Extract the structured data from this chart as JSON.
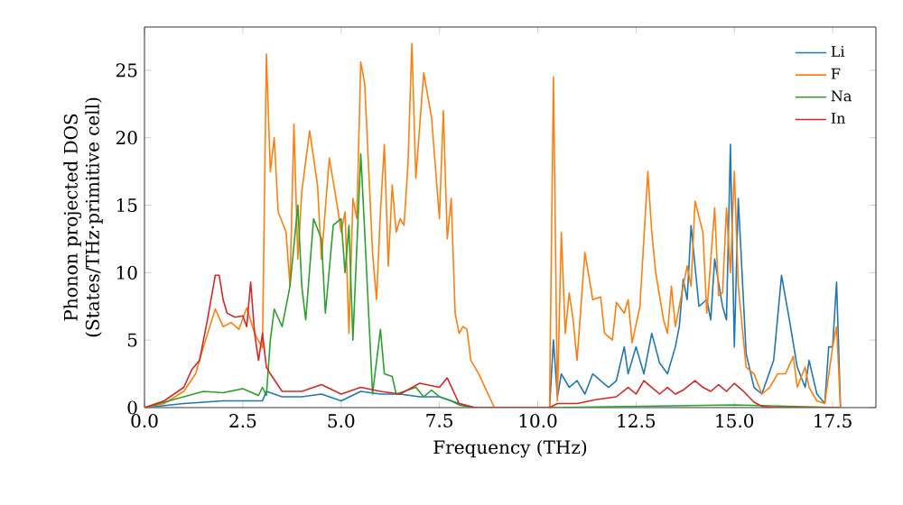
{
  "chart_data": {
    "type": "line",
    "xlabel": "Frequency (THz)",
    "ylabel": "Phonon projected DOS\n(States/THz·primitive cell)",
    "xlim": [
      0,
      18.6
    ],
    "ylim": [
      0,
      28.2
    ],
    "xticks": [
      {
        "value": 0,
        "label": "0.0"
      },
      {
        "value": 2.5,
        "label": "2.5"
      },
      {
        "value": 5,
        "label": "5.0"
      },
      {
        "value": 7.5,
        "label": "7.5"
      },
      {
        "value": 10,
        "label": "10.0"
      },
      {
        "value": 12.5,
        "label": "12.5"
      },
      {
        "value": 15,
        "label": "15.0"
      },
      {
        "value": 17.5,
        "label": "17.5"
      }
    ],
    "yticks": [
      0,
      5,
      10,
      15,
      20,
      25
    ],
    "legend": "top right",
    "grid": false,
    "marker": "none",
    "line_style": "solid",
    "series": [
      {
        "name": "Li",
        "color": "#1f77b4",
        "x": [
          0,
          1,
          2,
          3,
          3.1,
          3.5,
          4,
          4.5,
          5,
          5.5,
          6,
          6.5,
          7,
          7.5,
          8,
          8.4,
          10.3,
          10.4,
          10.5,
          10.6,
          10.8,
          11,
          11.2,
          11.4,
          11.6,
          11.8,
          12,
          12.2,
          12.3,
          12.5,
          12.7,
          12.9,
          13.1,
          13.3,
          13.5,
          13.6,
          13.7,
          13.8,
          13.9,
          14.1,
          14.3,
          14.4,
          14.5,
          14.7,
          14.8,
          14.9,
          15,
          15.1,
          15.3,
          15.5,
          15.7,
          16,
          16.2,
          16.4,
          16.6,
          16.8,
          16.9,
          17.1,
          17.3,
          17.4,
          17.5,
          17.6,
          17.7
        ],
        "values": [
          0,
          0.3,
          0.5,
          0.5,
          1.2,
          0.8,
          0.8,
          1,
          0.5,
          1.2,
          1,
          1,
          0.8,
          0.8,
          0.3,
          0,
          0,
          5,
          0.8,
          2.5,
          1.5,
          2,
          1,
          2.5,
          2,
          1.5,
          2,
          4.5,
          2.5,
          4.5,
          2.5,
          5.5,
          3.3,
          2.5,
          4.5,
          6,
          9.5,
          8,
          13.5,
          7.5,
          8,
          6.5,
          11,
          7.5,
          6.5,
          19.5,
          4.5,
          15.5,
          4,
          1.5,
          1,
          3.5,
          9.8,
          6.5,
          3,
          1.5,
          3.5,
          1,
          0.3,
          4.5,
          4.5,
          9.3,
          0
        ]
      },
      {
        "name": "F",
        "color": "#ff7f0e",
        "x": [
          0,
          0.5,
          1,
          1.3,
          1.5,
          1.8,
          2,
          2.2,
          2.4,
          2.6,
          2.8,
          3,
          3.1,
          3.2,
          3.3,
          3.4,
          3.6,
          3.7,
          3.8,
          3.9,
          4,
          4.2,
          4.4,
          4.5,
          4.7,
          4.9,
          5,
          5.1,
          5.2,
          5.3,
          5.4,
          5.5,
          5.6,
          5.8,
          5.9,
          6,
          6.1,
          6.2,
          6.3,
          6.4,
          6.5,
          6.6,
          6.7,
          6.8,
          6.9,
          7.1,
          7.3,
          7.5,
          7.6,
          7.7,
          7.8,
          7.9,
          8,
          8.1,
          8.2,
          8.3,
          8.5,
          8.9,
          10.3,
          10.4,
          10.5,
          10.6,
          10.7,
          10.8,
          10.9,
          11,
          11.2,
          11.4,
          11.6,
          11.7,
          11.9,
          12,
          12.2,
          12.3,
          12.4,
          12.6,
          12.8,
          12.9,
          13,
          13.2,
          13.3,
          13.4,
          13.5,
          13.6,
          13.8,
          13.9,
          14,
          14.2,
          14.3,
          14.5,
          14.6,
          14.7,
          14.8,
          14.9,
          15,
          15.1,
          15.3,
          15.5,
          15.7,
          15.9,
          16.1,
          16.3,
          16.5,
          16.6,
          16.8,
          16.9,
          17.1,
          17.3,
          17.5,
          17.6,
          17.7
        ],
        "values": [
          0,
          0.3,
          1.2,
          2.5,
          4.5,
          7.3,
          6,
          6.3,
          5.8,
          7.4,
          5.5,
          4.4,
          26.2,
          17.5,
          20,
          14.5,
          13,
          9,
          21,
          11,
          16,
          20.5,
          16.5,
          11,
          18.5,
          15,
          13,
          14.5,
          5.5,
          15.5,
          14,
          25.6,
          24,
          11.5,
          8,
          14.5,
          19.5,
          10.5,
          16.5,
          13,
          14,
          13.5,
          18,
          27,
          17,
          24.8,
          21.5,
          14,
          22,
          12.5,
          15.5,
          7,
          5.5,
          6,
          5.8,
          3.5,
          2.5,
          0,
          0,
          24.5,
          0.5,
          13,
          5.5,
          8.5,
          6.5,
          3.5,
          11.5,
          8,
          8.2,
          5.5,
          5,
          7.8,
          7,
          8,
          4.8,
          7.5,
          17.5,
          13,
          10,
          6.5,
          5.5,
          9,
          6,
          7.5,
          10.5,
          9,
          15.3,
          13,
          7,
          14.8,
          8.3,
          8.5,
          14.8,
          10,
          17.5,
          9,
          3,
          2.5,
          1,
          1.5,
          2.5,
          2.5,
          3.8,
          1.5,
          3,
          1.5,
          0.5,
          0.3,
          4.5,
          6,
          0
        ]
      },
      {
        "name": "Na",
        "color": "#2ca02c",
        "x": [
          0,
          1,
          1.5,
          2,
          2.5,
          2.9,
          3,
          3.1,
          3.2,
          3.3,
          3.5,
          3.7,
          3.9,
          4,
          4.1,
          4.3,
          4.5,
          4.6,
          4.8,
          5,
          5.1,
          5.2,
          5.3,
          5.5,
          5.6,
          5.8,
          6,
          6.1,
          6.3,
          6.4,
          6.6,
          6.9,
          7.1,
          7.3,
          7.5,
          7.8,
          8,
          8.3,
          10.3,
          15,
          17.7
        ],
        "values": [
          0,
          0.8,
          1.2,
          1.1,
          1.4,
          0.9,
          1.5,
          0.9,
          5,
          7.3,
          6,
          9,
          15,
          9,
          6.5,
          14,
          12.5,
          7,
          13.5,
          14,
          10,
          13.5,
          5,
          18.8,
          13,
          1,
          5.8,
          2.5,
          2.3,
          1,
          1.2,
          1.5,
          0.8,
          1.3,
          0.8,
          0.5,
          0.2,
          0,
          0,
          0.2,
          0
        ]
      },
      {
        "name": "In",
        "color": "#d62728",
        "x": [
          0,
          0.5,
          1,
          1.2,
          1.4,
          1.6,
          1.8,
          1.9,
          2,
          2.1,
          2.3,
          2.5,
          2.6,
          2.7,
          2.8,
          2.9,
          3,
          3.1,
          3.2,
          3.5,
          4,
          4.5,
          5,
          5.5,
          6,
          6.5,
          7,
          7.5,
          7.7,
          8,
          8.4,
          10.3,
          10.5,
          11,
          11.5,
          12,
          12.3,
          12.5,
          12.7,
          12.9,
          13.1,
          13.3,
          13.5,
          13.7,
          14,
          14.2,
          14.4,
          14.6,
          14.8,
          15,
          15.2,
          15.5,
          15.7,
          16,
          17.7
        ],
        "values": [
          0,
          0.5,
          1.5,
          2.8,
          3.5,
          6.5,
          9.8,
          9.8,
          8,
          7,
          6.7,
          6.8,
          6,
          9.3,
          5.5,
          3.5,
          5.5,
          3,
          2.5,
          1.2,
          1.2,
          1.7,
          1,
          1.5,
          1.2,
          1,
          1.8,
          1.5,
          2.2,
          0.3,
          0,
          0,
          0.3,
          0.3,
          0.6,
          0.8,
          1.5,
          1,
          2,
          1.5,
          1,
          1.5,
          1,
          1.3,
          2,
          1.5,
          1.2,
          1.7,
          1.2,
          1.8,
          1.3,
          0.4,
          0.1,
          0,
          0
        ]
      }
    ]
  }
}
